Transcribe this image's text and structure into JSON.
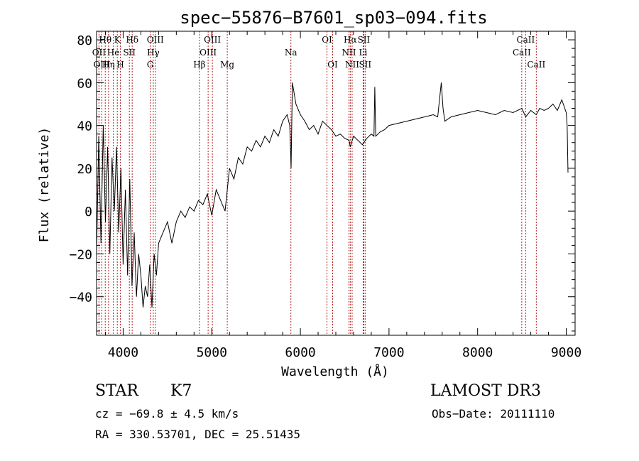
{
  "chart_data": {
    "type": "line",
    "title": "spec−55876−B7601_sp03−094.fits",
    "xlabel": "Wavelength (Å)",
    "ylabel": "Flux (relative)",
    "xlim": [
      3700,
      9100
    ],
    "ylim": [
      -58,
      84
    ],
    "x_ticks": [
      4000,
      5000,
      6000,
      7000,
      8000,
      9000
    ],
    "y_ticks": [
      -40,
      -20,
      0,
      20,
      40,
      60,
      80
    ],
    "y_tick_labels": [
      "−40",
      "−20",
      "0",
      "20",
      "40",
      "60",
      "80"
    ],
    "grid": false,
    "series": [
      {
        "name": "flux",
        "x": [
          3700,
          3725,
          3750,
          3775,
          3800,
          3825,
          3850,
          3875,
          3900,
          3925,
          3950,
          3975,
          4000,
          4025,
          4050,
          4075,
          4100,
          4125,
          4150,
          4175,
          4200,
          4225,
          4250,
          4275,
          4300,
          4325,
          4350,
          4375,
          4400,
          4450,
          4500,
          4550,
          4600,
          4650,
          4700,
          4750,
          4800,
          4850,
          4900,
          4950,
          5000,
          5050,
          5100,
          5150,
          5200,
          5250,
          5300,
          5350,
          5400,
          5450,
          5500,
          5550,
          5600,
          5650,
          5700,
          5750,
          5800,
          5850,
          5880,
          5895,
          5910,
          5930,
          5950,
          6000,
          6050,
          6100,
          6150,
          6200,
          6250,
          6300,
          6350,
          6400,
          6450,
          6500,
          6550,
          6563,
          6600,
          6650,
          6700,
          6750,
          6800,
          6830,
          6840,
          6850,
          6900,
          6950,
          7000,
          7100,
          7200,
          7300,
          7400,
          7500,
          7550,
          7590,
          7610,
          7630,
          7700,
          7800,
          7900,
          8000,
          8100,
          8200,
          8300,
          8400,
          8500,
          8542,
          8600,
          8662,
          8700,
          8750,
          8800,
          8850,
          8900,
          8950,
          9000,
          9010,
          9020
        ],
        "y": [
          -20,
          35,
          -15,
          40,
          -5,
          30,
          -20,
          25,
          0,
          30,
          -10,
          20,
          -25,
          10,
          -30,
          15,
          -35,
          -10,
          -40,
          -20,
          -30,
          -45,
          -35,
          -40,
          -25,
          -45,
          -20,
          -30,
          -15,
          -10,
          -5,
          -15,
          -5,
          0,
          -3,
          2,
          0,
          5,
          3,
          8,
          -2,
          10,
          5,
          0,
          20,
          15,
          25,
          22,
          30,
          28,
          33,
          30,
          35,
          32,
          38,
          35,
          42,
          45,
          40,
          20,
          60,
          55,
          50,
          45,
          42,
          38,
          40,
          36,
          42,
          40,
          38,
          35,
          36,
          34,
          33,
          30,
          35,
          33,
          31,
          34,
          36,
          35,
          58,
          35,
          37,
          38,
          40,
          41,
          42,
          43,
          44,
          45,
          44,
          60,
          48,
          42,
          44,
          45,
          46,
          47,
          46,
          45,
          47,
          46,
          48,
          44,
          47,
          45,
          48,
          47,
          48,
          50,
          47,
          52,
          46,
          40,
          18
        ]
      }
    ],
    "line_labels": [
      {
        "label": "Hθ",
        "x": 3798,
        "row": 1
      },
      {
        "label": "OII",
        "x": 3727,
        "row": 2
      },
      {
        "label": "OIII",
        "x": 3760,
        "row": 3
      },
      {
        "label": "K",
        "x": 3934,
        "row": 1
      },
      {
        "label": "He",
        "x": 3889,
        "row": 2
      },
      {
        "label": "Hη",
        "x": 3835,
        "row": 3
      },
      {
        "label": "H",
        "x": 3969,
        "row": 3
      },
      {
        "label": "Hδ",
        "x": 4102,
        "row": 1
      },
      {
        "label": "SII",
        "x": 4070,
        "row": 2
      },
      {
        "label": "OIII",
        "x": 4363,
        "row": 1
      },
      {
        "label": "Hγ",
        "x": 4340,
        "row": 2
      },
      {
        "label": "G",
        "x": 4305,
        "row": 3
      },
      {
        "label": "OIII",
        "x": 5007,
        "row": 1
      },
      {
        "label": "OIII",
        "x": 4959,
        "row": 2
      },
      {
        "label": "Hβ",
        "x": 4861,
        "row": 3
      },
      {
        "label": "Mg",
        "x": 5175,
        "row": 3
      },
      {
        "label": "Na",
        "x": 5893,
        "row": 2
      },
      {
        "label": "OI",
        "x": 6300,
        "row": 1
      },
      {
        "label": "OI",
        "x": 6364,
        "row": 3
      },
      {
        "label": "Hα",
        "x": 6563,
        "row": 1
      },
      {
        "label": "SII",
        "x": 6716,
        "row": 1
      },
      {
        "label": "NII",
        "x": 6548,
        "row": 2
      },
      {
        "label": "Li",
        "x": 6708,
        "row": 2
      },
      {
        "label": "NII",
        "x": 6584,
        "row": 3
      },
      {
        "label": "SII",
        "x": 6731,
        "row": 3
      },
      {
        "label": "CaII",
        "x": 8542,
        "row": 1
      },
      {
        "label": "CaII",
        "x": 8498,
        "row": 2
      },
      {
        "label": "CaII",
        "x": 8662,
        "row": 3
      }
    ]
  },
  "info": {
    "object_class": "STAR",
    "subclass": "K7",
    "survey": "LAMOST DR3",
    "redshift": "cz = −69.8 ± 4.5 km/s",
    "obs_date": "Obs−Date: 20111110",
    "coords": "RA = 330.53701, DEC =  25.51435"
  },
  "colors": {
    "line_marker": "#b22222",
    "spectrum": "#000000",
    "axis": "#000000"
  }
}
